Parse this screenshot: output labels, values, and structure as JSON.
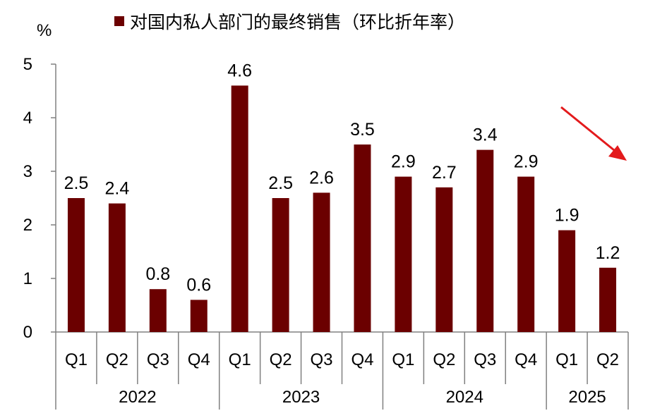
{
  "colors": {
    "bar": "#6b0000",
    "axis": "#808080",
    "arrow": "#e31a1c",
    "text": "#000000"
  },
  "chart_data": {
    "type": "bar",
    "unit_label": "%",
    "ylim": [
      0,
      5
    ],
    "yticks": [
      0,
      1,
      2,
      3,
      4,
      5
    ],
    "grid": false,
    "legend_position": "top",
    "series": [
      {
        "name": "对国内私人部门的最终销售（环比折年率）",
        "values": [
          2.5,
          2.4,
          0.8,
          0.6,
          4.6,
          2.5,
          2.6,
          3.5,
          2.9,
          2.7,
          3.4,
          2.9,
          1.9,
          1.2
        ]
      }
    ],
    "categories": [
      "Q1",
      "Q2",
      "Q3",
      "Q4",
      "Q1",
      "Q2",
      "Q3",
      "Q4",
      "Q1",
      "Q2",
      "Q3",
      "Q4",
      "Q1",
      "Q2"
    ],
    "data_labels": [
      "2.5",
      "2.4",
      "0.8",
      "0.6",
      "4.6",
      "2.5",
      "2.6",
      "3.5",
      "2.9",
      "2.7",
      "3.4",
      "2.9",
      "1.9",
      "1.2"
    ],
    "year_groups": [
      {
        "label": "2022",
        "count": 4
      },
      {
        "label": "2023",
        "count": 4
      },
      {
        "label": "2024",
        "count": 4
      },
      {
        "label": "2025",
        "count": 2
      }
    ],
    "annotation": "downward-trend-arrow"
  }
}
